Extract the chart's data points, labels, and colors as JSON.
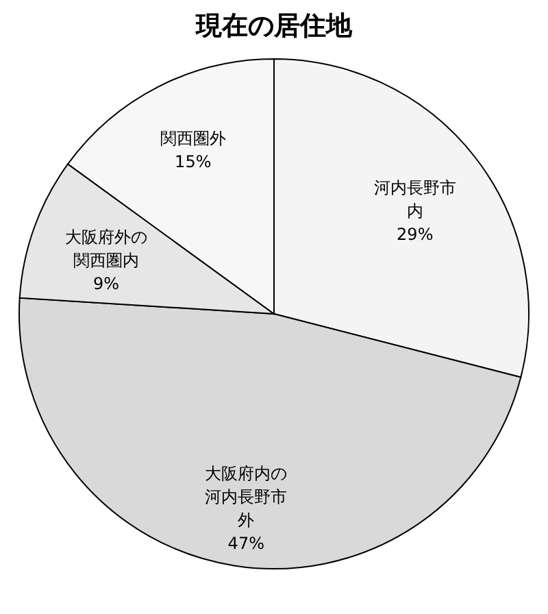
{
  "chart_data": {
    "type": "pie",
    "title": "現在の居住地",
    "categories": [
      "河内長野市内",
      "大阪府内の河内長野市外",
      "大阪府外の関西圏内",
      "関西圏外"
    ],
    "values": [
      29,
      47,
      9,
      15
    ],
    "value_labels": [
      "29%",
      "47%",
      "9%",
      "15%"
    ],
    "colors": [
      "#f4f4f4",
      "#d9d9d9",
      "#e6e6e6",
      "#f7f7f7"
    ],
    "legend": false
  }
}
